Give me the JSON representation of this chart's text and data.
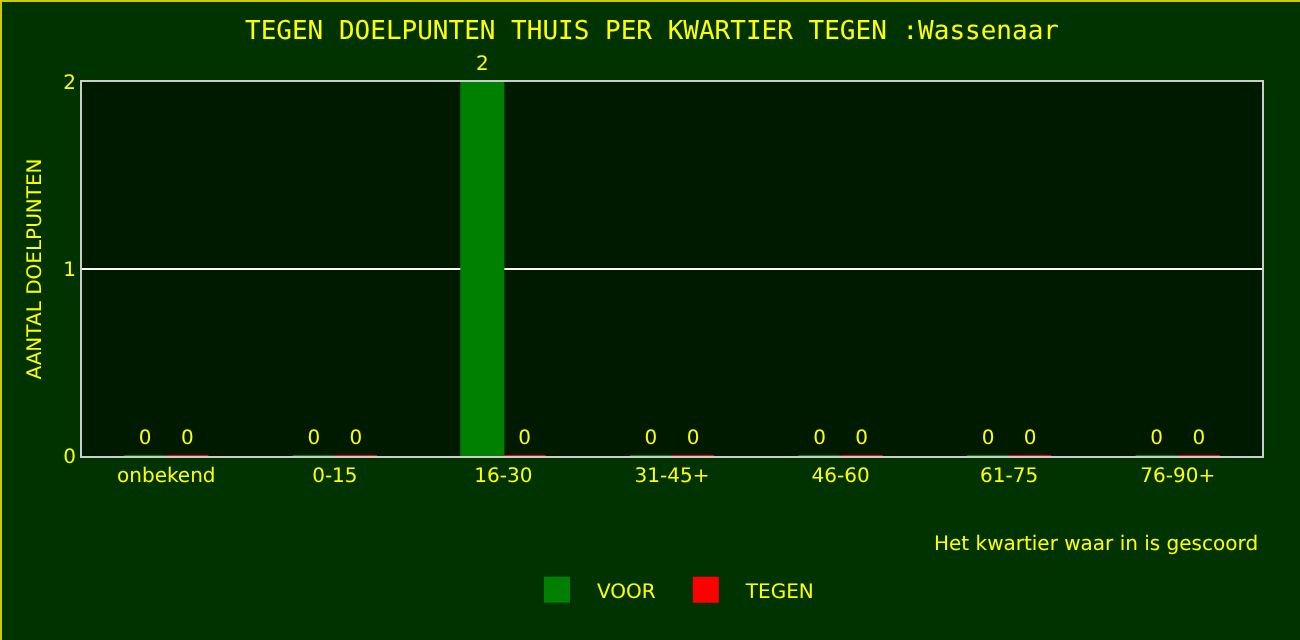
{
  "chart_data": {
    "type": "bar",
    "title": "TEGEN DOELPUNTEN THUIS PER KWARTIER TEGEN :Wassenaar",
    "xlabel": "Het kwartier waar in is gescoord",
    "ylabel": "AANTAL DOELPUNTEN",
    "categories": [
      "onbekend",
      "0-15",
      "16-30",
      "31-45+",
      "46-60",
      "61-75",
      "76-90+"
    ],
    "series": [
      {
        "name": "VOOR",
        "color": "#008000",
        "values": [
          0,
          0,
          2,
          0,
          0,
          0,
          0
        ]
      },
      {
        "name": "TEGEN",
        "color": "#ff0000",
        "values": [
          0,
          0,
          0,
          0,
          0,
          0,
          0
        ]
      }
    ],
    "ylim": [
      0,
      2
    ],
    "yticks": [
      0,
      1,
      2
    ],
    "grid": "y",
    "legend": "bottom",
    "data_labels": true
  }
}
